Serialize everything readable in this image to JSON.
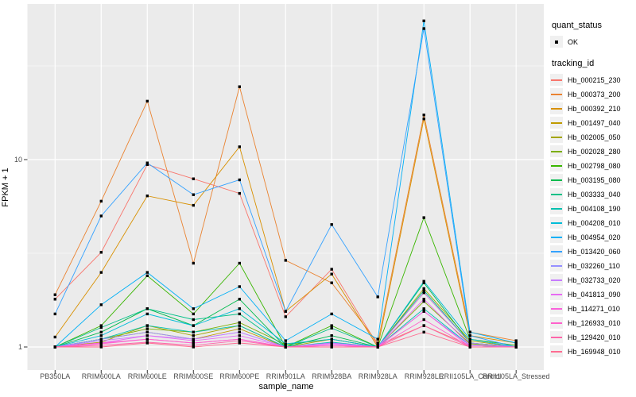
{
  "style": {
    "panel_bg": "#EBEBEB",
    "grid_color": "#FFFFFF",
    "axis_text_color": "#4D4D4D",
    "tick_color": "#333333",
    "point_color": "#000000",
    "legend_key_bg": "#F0F0F0"
  },
  "legend": {
    "quant_status_title": "quant_status",
    "ok_label": "OK",
    "tracking_title": "tracking_id"
  },
  "chart_data": {
    "type": "line",
    "title": "",
    "xlabel": "sample_name",
    "ylabel": "FPKM + 1",
    "y_scale": "log10",
    "y_major_breaks": [
      1,
      10
    ],
    "y_minor_breaks": [
      3.162,
      31.623
    ],
    "ylim": [
      0.75,
      64
    ],
    "grid": true,
    "legend_position": "right",
    "point_shape": "filled-square",
    "x_categories": [
      "PB350LA",
      "RRIM600LA",
      "RRIM600LE",
      "RRIM600SE",
      "RRIM600PE",
      "RRIM901LA",
      "RRIM928BA",
      "RRIM928LA",
      "RRIM928LE",
      "RRII105LA_Control",
      "RRII105LA_Stressed"
    ],
    "quant_status": "OK",
    "series": [
      {
        "name": "Hb_000215_230",
        "color": "#F8766D",
        "values": [
          1.8,
          3.2,
          9.4,
          7.9,
          6.6,
          1.45,
          2.6,
          1.02,
          1.3,
          1.02,
          1.0
        ]
      },
      {
        "name": "Hb_000373_200",
        "color": "#EA8331",
        "values": [
          1.9,
          6.0,
          20.5,
          2.8,
          24.5,
          2.9,
          2.2,
          1.05,
          17.3,
          1.2,
          1.08
        ]
      },
      {
        "name": "Hb_000392_210",
        "color": "#D89000",
        "values": [
          1.13,
          2.5,
          6.4,
          5.7,
          11.7,
          1.55,
          2.45,
          1.0,
          16.5,
          1.15,
          1.05
        ]
      },
      {
        "name": "Hb_001497_040",
        "color": "#C09B00",
        "values": [
          1.0,
          1.1,
          1.2,
          1.1,
          1.25,
          1.0,
          1.05,
          1.0,
          1.95,
          1.05,
          1.0
        ]
      },
      {
        "name": "Hb_002005_050",
        "color": "#A3A500",
        "values": [
          1.0,
          1.06,
          1.3,
          1.15,
          1.3,
          1.0,
          1.1,
          1.0,
          2.05,
          1.08,
          1.0
        ]
      },
      {
        "name": "Hb_002028_280",
        "color": "#7CAE00",
        "values": [
          1.0,
          1.1,
          1.25,
          1.2,
          1.35,
          1.03,
          1.1,
          1.0,
          1.75,
          1.04,
          1.0
        ]
      },
      {
        "name": "Hb_002798_080",
        "color": "#39B600",
        "values": [
          1.0,
          1.3,
          2.4,
          1.5,
          2.8,
          1.0,
          1.3,
          1.0,
          4.9,
          1.1,
          1.02
        ]
      },
      {
        "name": "Hb_003195_080",
        "color": "#00BB4E",
        "values": [
          1.0,
          1.2,
          1.6,
          1.3,
          1.8,
          1.0,
          1.15,
          1.0,
          2.2,
          1.05,
          1.0
        ]
      },
      {
        "name": "Hb_003333_040",
        "color": "#00C087",
        "values": [
          1.0,
          1.27,
          1.6,
          1.4,
          1.5,
          1.0,
          1.26,
          1.0,
          2.0,
          1.05,
          1.0
        ]
      },
      {
        "name": "Hb_004108_190",
        "color": "#00C0AF",
        "values": [
          1.0,
          1.1,
          1.3,
          1.2,
          1.3,
          1.0,
          1.06,
          1.0,
          1.6,
          1.02,
          1.0
        ]
      },
      {
        "name": "Hb_004208_010",
        "color": "#00BCD8",
        "values": [
          1.0,
          1.15,
          1.5,
          1.3,
          1.6,
          1.04,
          1.1,
          1.0,
          2.24,
          1.1,
          1.0
        ]
      },
      {
        "name": "Hb_004954_020",
        "color": "#00B0F6",
        "values": [
          1.0,
          1.68,
          2.5,
          1.6,
          2.1,
          1.08,
          1.5,
          1.1,
          55.0,
          1.2,
          1.05
        ]
      },
      {
        "name": "Hb_013420_060",
        "color": "#35A2FF",
        "values": [
          1.5,
          5.0,
          9.6,
          6.5,
          7.8,
          1.55,
          4.5,
          1.85,
          50.0,
          1.15,
          1.0
        ]
      },
      {
        "name": "Hb_032260_110",
        "color": "#9590FF",
        "values": [
          1.0,
          1.1,
          1.2,
          1.1,
          1.2,
          1.0,
          1.05,
          1.0,
          1.55,
          1.02,
          1.0
        ]
      },
      {
        "name": "Hb_032733_020",
        "color": "#C77CFF",
        "values": [
          1.0,
          1.08,
          1.15,
          1.1,
          1.2,
          1.0,
          1.05,
          1.0,
          1.95,
          1.05,
          1.0
        ]
      },
      {
        "name": "Hb_041813_090",
        "color": "#E76BF3",
        "values": [
          1.0,
          1.05,
          1.15,
          1.08,
          1.15,
          1.0,
          1.04,
          1.0,
          1.8,
          1.02,
          1.0
        ]
      },
      {
        "name": "Hb_114271_010",
        "color": "#FA62DB",
        "values": [
          1.0,
          1.05,
          1.1,
          1.05,
          1.1,
          1.0,
          1.02,
          1.0,
          1.55,
          1.0,
          1.0
        ]
      },
      {
        "name": "Hb_126933_010",
        "color": "#FF61CC",
        "values": [
          1.0,
          1.04,
          1.1,
          1.05,
          1.1,
          1.0,
          1.02,
          1.0,
          1.4,
          1.0,
          1.0
        ]
      },
      {
        "name": "Hb_129420_010",
        "color": "#FF65AA",
        "values": [
          1.0,
          1.02,
          1.06,
          1.02,
          1.08,
          1.0,
          1.0,
          1.0,
          1.3,
          1.0,
          1.0
        ]
      },
      {
        "name": "Hb_169948_010",
        "color": "#FF6C91",
        "values": [
          1.0,
          1.0,
          1.05,
          1.0,
          1.05,
          1.0,
          1.0,
          1.0,
          1.2,
          1.0,
          1.0
        ]
      }
    ]
  }
}
